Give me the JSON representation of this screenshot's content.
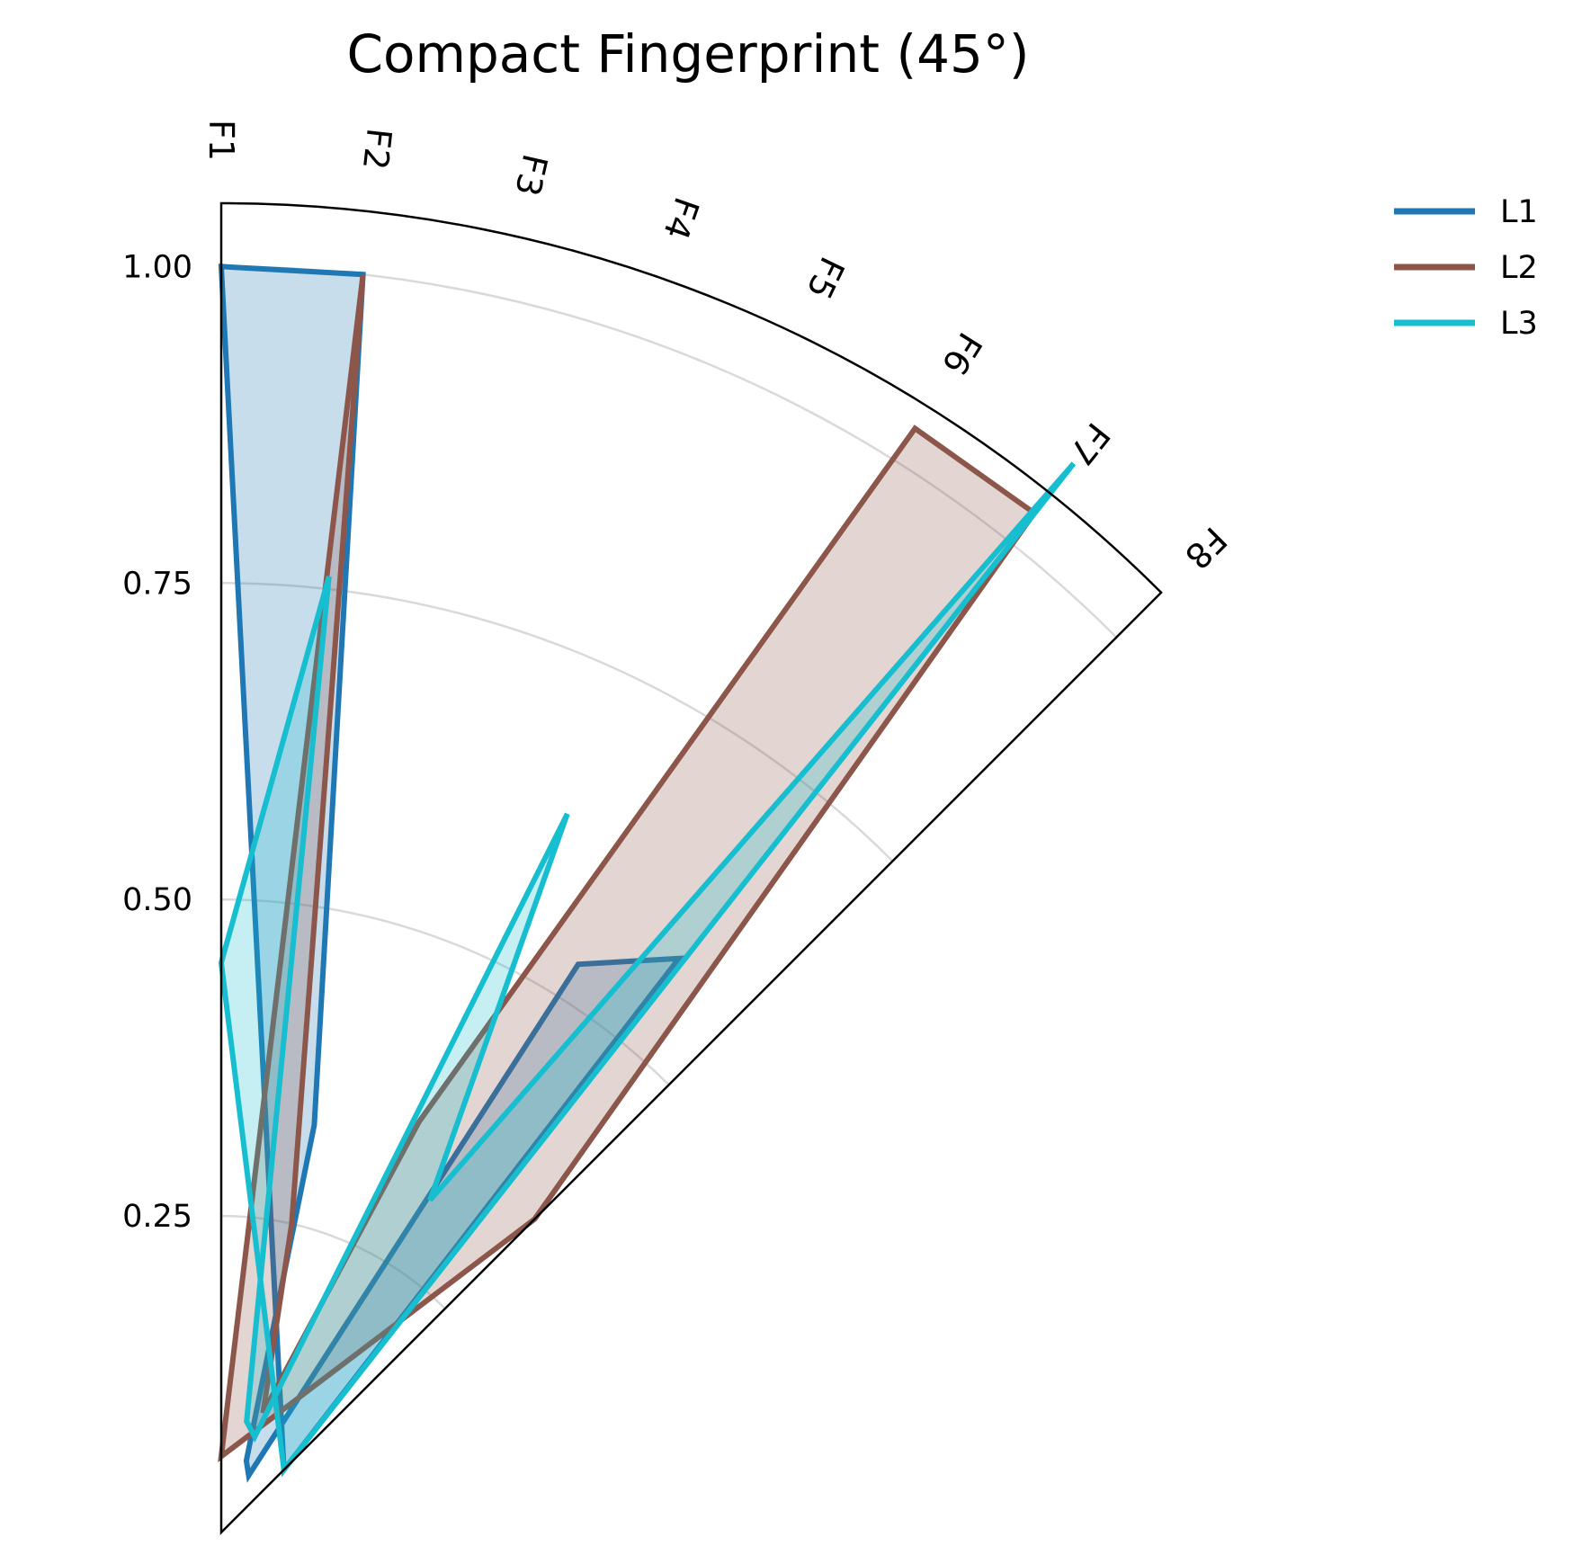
{
  "chart_data": {
    "type": "radar",
    "title": "Compact Fingerprint (45°)",
    "categories": [
      "F1",
      "F2",
      "F3",
      "F4",
      "F5",
      "F6",
      "F7",
      "F8"
    ],
    "angle_span_degrees": 45,
    "rlim": [
      0,
      1.05
    ],
    "r_ticks": [
      0.25,
      0.5,
      0.75,
      1.0
    ],
    "r_tick_labels": [
      "0.25",
      "0.50",
      "0.75",
      "1.00"
    ],
    "grid": true,
    "legend_position": "upper-right-outside",
    "series": [
      {
        "name": "L1",
        "color": "#1f77b4",
        "values": [
          1.0,
          1.0,
          0.33,
          0.06,
          0.05,
          0.53,
          0.58,
          0.07
        ]
      },
      {
        "name": "L2",
        "color": "#8c564b",
        "values": [
          0.06,
          1.0,
          0.25,
          0.1,
          0.36,
          1.03,
          1.03,
          0.35
        ]
      },
      {
        "name": "L3",
        "color": "#17becf",
        "values": [
          0.45,
          0.76,
          0.09,
          0.08,
          0.63,
          0.31,
          1.08,
          0.07
        ]
      }
    ]
  }
}
